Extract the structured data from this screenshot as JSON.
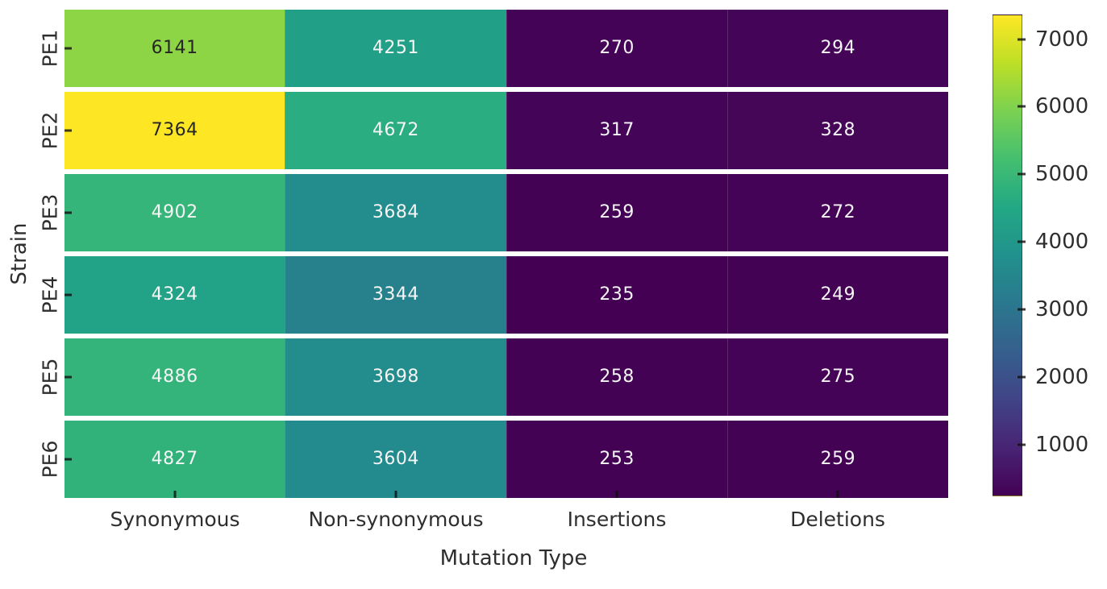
{
  "chart_data": {
    "type": "heatmap",
    "title": "",
    "xlabel": "Mutation Type",
    "ylabel": "Strain",
    "categories_x": [
      "Synonymous",
      "Non-synonymous",
      "Insertions",
      "Deletions"
    ],
    "categories_y": [
      "PE1",
      "PE2",
      "PE3",
      "PE4",
      "PE5",
      "PE6"
    ],
    "values": [
      [
        6141,
        4251,
        270,
        294
      ],
      [
        7364,
        4672,
        317,
        328
      ],
      [
        4902,
        3684,
        259,
        272
      ],
      [
        4324,
        3344,
        235,
        249
      ],
      [
        4886,
        3698,
        258,
        275
      ],
      [
        4827,
        3604,
        253,
        259
      ]
    ],
    "annotated": true,
    "colormap": "viridis",
    "vmin": 235,
    "vmax": 7364,
    "colorbar_ticks": [
      1000,
      2000,
      3000,
      4000,
      5000,
      6000,
      7000
    ],
    "legend_position": "right",
    "grid": false,
    "colors": {
      "cmap_low": "#440154",
      "cmap_mid": "#21918c",
      "cmap_high": "#fde725",
      "annotation_light": "#f5f5f5",
      "annotation_dark": "#262626",
      "axis_text": "#2e2e2e",
      "row_gap": "#ffffff"
    }
  }
}
